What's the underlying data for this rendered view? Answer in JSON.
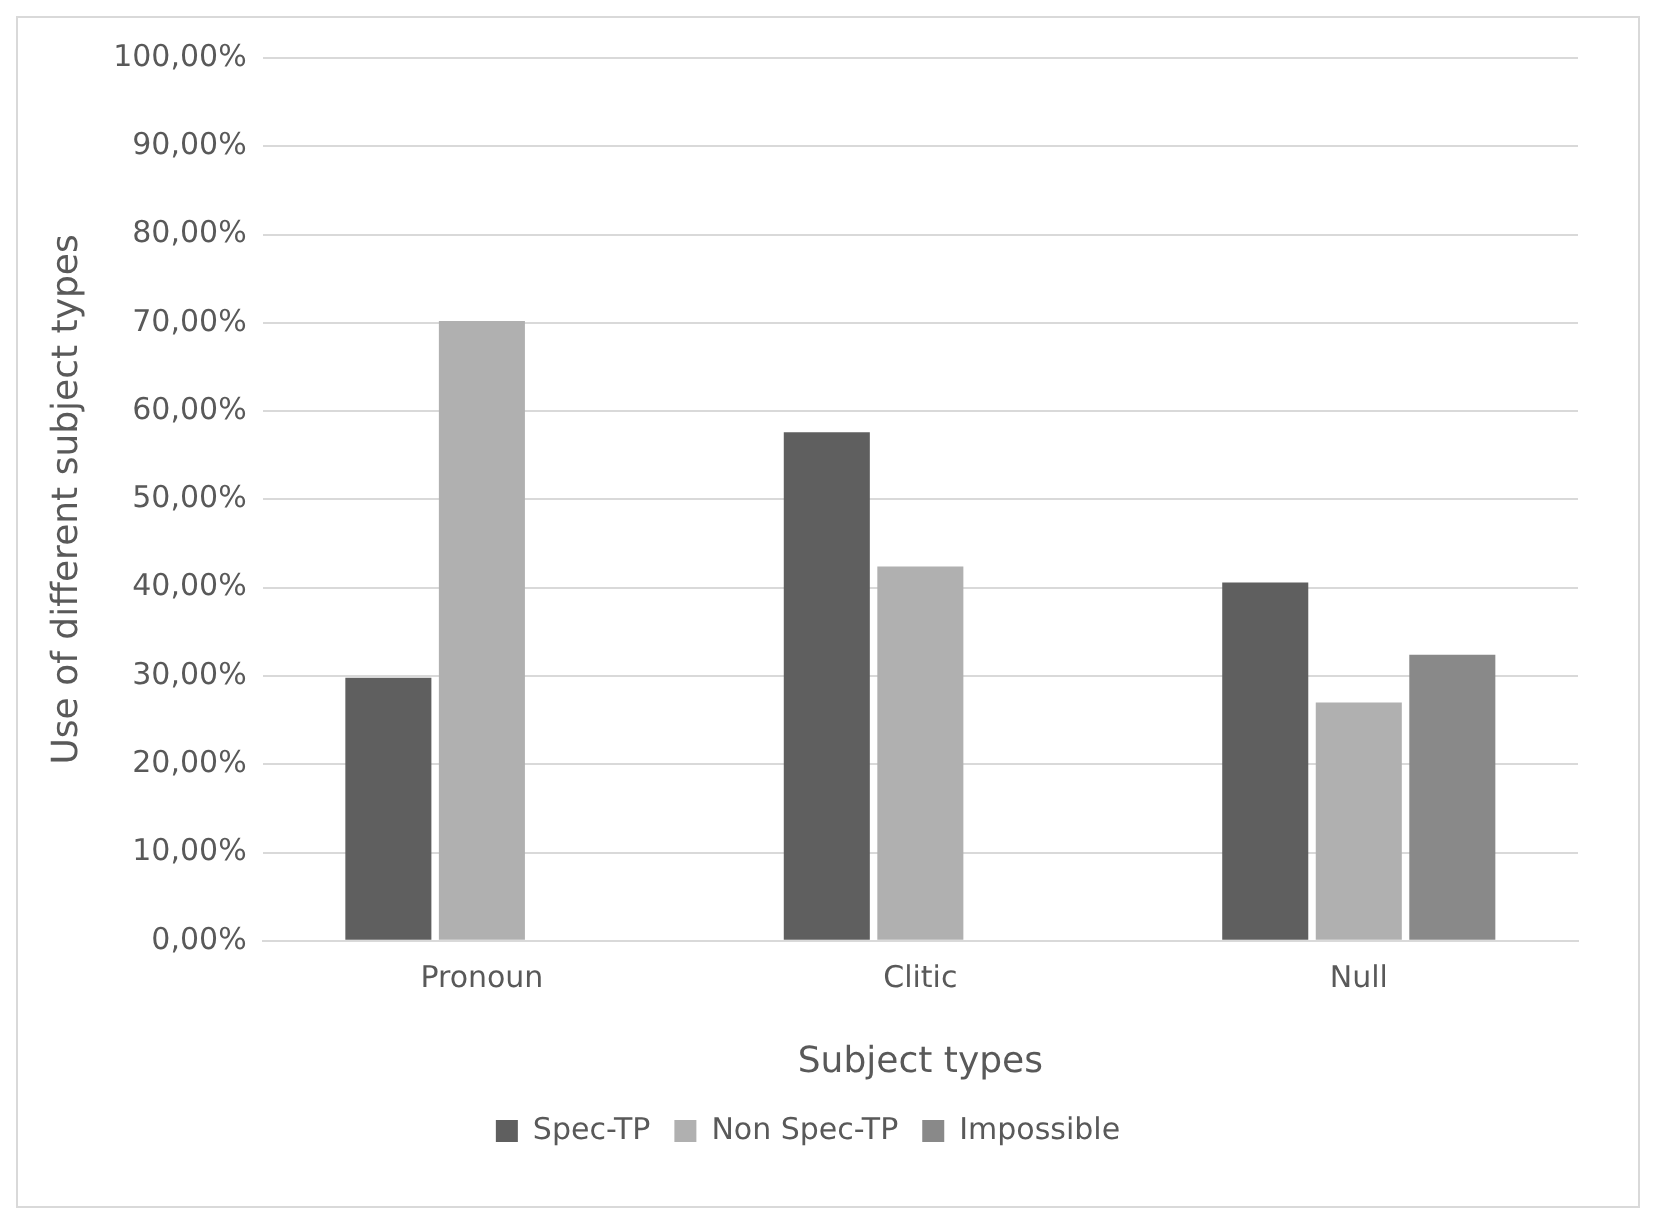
{
  "chart_data": {
    "type": "bar",
    "xlabel": "Subject types",
    "ylabel": "Use of different subject types",
    "categories": [
      "Pronoun",
      "Clitic",
      "Null"
    ],
    "series": [
      {
        "name": "Spec-TP",
        "color": "#5f5f5f",
        "values": [
          29.8,
          57.6,
          40.6
        ]
      },
      {
        "name": "Non Spec-TP",
        "color": "#b0b0b0",
        "values": [
          70.2,
          42.4,
          27.0
        ]
      },
      {
        "name": "Impossible",
        "color": "#898989",
        "values": [
          null,
          null,
          32.4
        ]
      }
    ],
    "ylim": [
      0,
      100
    ],
    "yticks": [
      {
        "value": 0,
        "label": "0,00%"
      },
      {
        "value": 10,
        "label": "10,00%"
      },
      {
        "value": 20,
        "label": "20,00%"
      },
      {
        "value": 30,
        "label": "30,00%"
      },
      {
        "value": 40,
        "label": "40,00%"
      },
      {
        "value": 50,
        "label": "50,00%"
      },
      {
        "value": 60,
        "label": "60,00%"
      },
      {
        "value": 70,
        "label": "70,00%"
      },
      {
        "value": 80,
        "label": "80,00%"
      },
      {
        "value": 90,
        "label": "90,00%"
      },
      {
        "value": 100,
        "label": "100,00%"
      }
    ],
    "grid": "y",
    "legend": "bottom"
  }
}
